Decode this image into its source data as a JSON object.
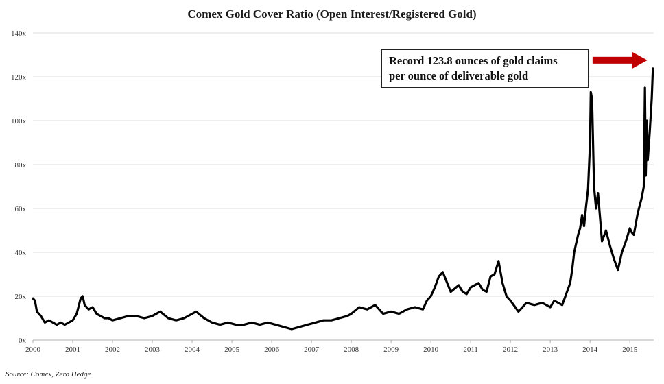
{
  "chart_data": {
    "type": "line",
    "title": "Comex Gold Cover Ratio (Open Interest/Registered Gold)",
    "xlabel": "",
    "ylabel": "",
    "xlim": [
      2000,
      2015.6
    ],
    "ylim": [
      0,
      140
    ],
    "y_ticks": [
      "0x",
      "20x",
      "40x",
      "60x",
      "80x",
      "100x",
      "120x",
      "140x"
    ],
    "x_ticks": [
      "2000",
      "2001",
      "2002",
      "2003",
      "2004",
      "2005",
      "2006",
      "2007",
      "2008",
      "2009",
      "2010",
      "2011",
      "2012",
      "2013",
      "2014",
      "2015"
    ],
    "grid": true,
    "legend": "none",
    "series_color": "#000000",
    "series": [
      {
        "x": [
          2000.0,
          2000.05,
          2000.1,
          2000.2,
          2000.3,
          2000.4,
          2000.5,
          2000.6,
          2000.7,
          2000.8,
          2000.9,
          2001.0,
          2001.1,
          2001.2,
          2001.25,
          2001.3,
          2001.4,
          2001.5,
          2001.6,
          2001.7,
          2001.8,
          2001.9,
          2002.0,
          2002.2,
          2002.4,
          2002.6,
          2002.8,
          2003.0,
          2003.2,
          2003.4,
          2003.6,
          2003.8,
          2004.0,
          2004.1,
          2004.3,
          2004.5,
          2004.7,
          2004.9,
          2005.1,
          2005.3,
          2005.5,
          2005.7,
          2005.9,
          2006.1,
          2006.3,
          2006.5,
          2006.7,
          2006.9,
          2007.1,
          2007.3,
          2007.5,
          2007.7,
          2007.9,
          2008.0,
          2008.2,
          2008.4,
          2008.6,
          2008.8,
          2009.0,
          2009.2,
          2009.4,
          2009.6,
          2009.8,
          2009.9,
          2010.0,
          2010.1,
          2010.2,
          2010.3,
          2010.5,
          2010.7,
          2010.8,
          2010.9,
          2011.0,
          2011.2,
          2011.3,
          2011.4,
          2011.5,
          2011.6,
          2011.7,
          2011.8,
          2011.9,
          2012.0,
          2012.2,
          2012.4,
          2012.6,
          2012.8,
          2013.0,
          2013.1,
          2013.2,
          2013.3,
          2013.4,
          2013.5,
          2013.55,
          2013.6,
          2013.7,
          2013.75,
          2013.8,
          2013.85,
          2013.9,
          2013.95,
          2014.0,
          2014.02,
          2014.05,
          2014.1,
          2014.15,
          2014.2,
          2014.3,
          2014.4,
          2014.5,
          2014.6,
          2014.7,
          2014.8,
          2014.9,
          2015.0,
          2015.05,
          2015.1,
          2015.2,
          2015.3,
          2015.35,
          2015.38,
          2015.4,
          2015.43,
          2015.45,
          2015.5,
          2015.55,
          2015.58
        ],
        "y": [
          19,
          18,
          13,
          11,
          8,
          9,
          8,
          7,
          8,
          7,
          8,
          9,
          12,
          19,
          20,
          16,
          14,
          15,
          12,
          11,
          10,
          10,
          9,
          10,
          11,
          11,
          10,
          11,
          13,
          10,
          9,
          10,
          12,
          13,
          10,
          8,
          7,
          8,
          7,
          7,
          8,
          7,
          8,
          7,
          6,
          5,
          6,
          7,
          8,
          9,
          9,
          10,
          11,
          12,
          15,
          14,
          16,
          12,
          13,
          12,
          14,
          15,
          14,
          18,
          20,
          24,
          29,
          31,
          22,
          25,
          22,
          21,
          24,
          26,
          23,
          22,
          29,
          30,
          36,
          26,
          20,
          18,
          13,
          17,
          16,
          17,
          15,
          18,
          17,
          16,
          21,
          26,
          32,
          40,
          48,
          51,
          57,
          52,
          61,
          69,
          90,
          113,
          110,
          70,
          60,
          67,
          45,
          50,
          43,
          37,
          32,
          40,
          45,
          51,
          49,
          48,
          58,
          65,
          70,
          115,
          75,
          100,
          82,
          95,
          110,
          123.8
        ]
      }
    ],
    "annotations": [
      {
        "line1": "Record 123.8 ounces of gold claims",
        "line2": "per ounce of deliverable gold",
        "arrow_color": "#c00000"
      }
    ],
    "source": "Source: Comex, Zero Hedge"
  }
}
